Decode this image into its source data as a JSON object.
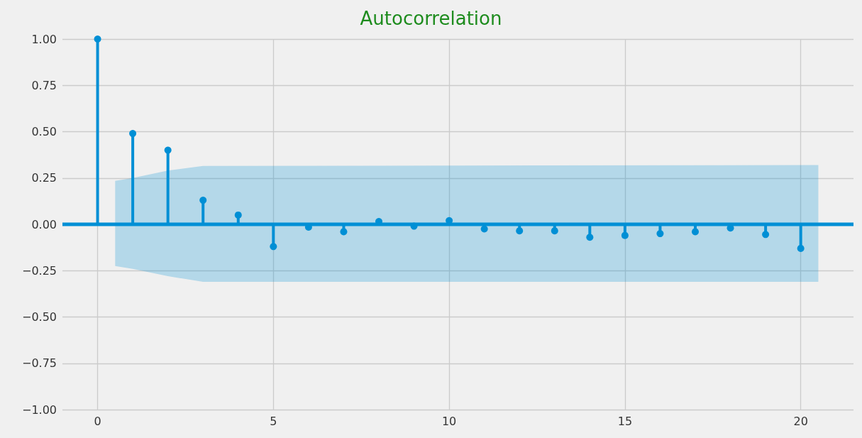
{
  "chart_data": {
    "type": "lollipop",
    "title": "Autocorrelation",
    "x": [
      0,
      1,
      2,
      3,
      4,
      5,
      6,
      7,
      8,
      9,
      10,
      11,
      12,
      13,
      14,
      15,
      16,
      17,
      18,
      19,
      20
    ],
    "series": [
      {
        "color": "#008fd5",
        "marker": "circle",
        "values": [
          1.0,
          0.49,
          0.4,
          0.13,
          0.05,
          -0.12,
          -0.015,
          -0.04,
          0.015,
          -0.01,
          0.02,
          -0.025,
          -0.035,
          -0.035,
          -0.07,
          -0.06,
          -0.05,
          -0.04,
          -0.02,
          -0.055,
          -0.13
        ]
      },
      {
        "type": "line",
        "color": "#008fd5",
        "marker": "none",
        "x": [
          -1,
          0.5,
          1,
          2,
          3,
          20.5,
          21.5
        ],
        "values": [
          0,
          0,
          0,
          0,
          0,
          0,
          0
        ],
        "lower": [
          null,
          -0.225,
          -0.24,
          -0.28,
          -0.31,
          -0.31,
          null
        ],
        "upper": [
          null,
          0.235,
          0.25,
          0.29,
          0.315,
          0.32,
          null
        ]
      }
    ],
    "xlim": [
      -1,
      21.5
    ],
    "xticks": [
      0,
      5,
      10,
      15,
      20
    ],
    "ylim": [
      -1,
      1
    ],
    "yticks": [
      {
        "value": -1,
        "label": "−1.00"
      },
      {
        "value": -0.75,
        "label": "−0.75"
      },
      {
        "value": -0.5,
        "label": "−0.50"
      },
      {
        "value": -0.25,
        "label": "−0.25"
      },
      {
        "value": 0,
        "label": "0.00"
      },
      {
        "value": 0.25,
        "label": "0.25"
      },
      {
        "value": 0.5,
        "label": "0.50"
      },
      {
        "value": 0.75,
        "label": "0.75"
      },
      {
        "value": 1,
        "label": "1.00"
      }
    ],
    "grid": true
  }
}
